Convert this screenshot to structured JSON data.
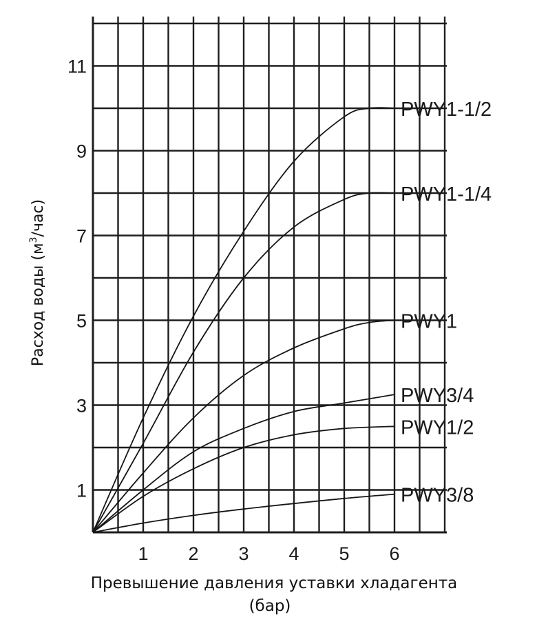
{
  "chart_data": {
    "type": "line",
    "title": "",
    "xlabel_line1": "Превышение давления уставки хладагента",
    "xlabel_line2": "(бар)",
    "ylabel_prefix": "Расход воды (м",
    "ylabel_sup": "3",
    "ylabel_suffix": "/час)",
    "xlim": [
      0,
      7
    ],
    "ylim": [
      0,
      12
    ],
    "x_ticks": [
      "1",
      "2",
      "3",
      "4",
      "5",
      "6"
    ],
    "y_ticks": [
      "1",
      "3",
      "5",
      "7",
      "9",
      "11"
    ],
    "grid": true,
    "series": [
      {
        "name": "PWY1-1/2",
        "x": [
          0,
          1,
          2,
          3,
          4,
          5,
          5.5,
          6
        ],
        "y": [
          0,
          2.7,
          5.1,
          7.1,
          8.75,
          9.8,
          10.0,
          10.0
        ]
      },
      {
        "name": "PWY1-1/4",
        "x": [
          0,
          1,
          2,
          3,
          4,
          5,
          5.5,
          6
        ],
        "y": [
          0,
          2.1,
          4.25,
          6.0,
          7.2,
          7.85,
          8.0,
          8.0
        ]
      },
      {
        "name": "PWY1",
        "x": [
          0,
          1,
          2,
          3,
          4,
          5,
          5.5,
          6
        ],
        "y": [
          0,
          1.4,
          2.7,
          3.7,
          4.35,
          4.8,
          4.95,
          5.0
        ]
      },
      {
        "name": "PWY3/4",
        "x": [
          0,
          1,
          2,
          3,
          4,
          5,
          6
        ],
        "y": [
          0,
          1.0,
          1.9,
          2.45,
          2.85,
          3.05,
          3.25
        ]
      },
      {
        "name": "PWY1/2",
        "x": [
          0,
          1,
          2,
          3,
          4,
          5,
          6
        ],
        "y": [
          0,
          0.85,
          1.5,
          2.0,
          2.3,
          2.45,
          2.5
        ]
      },
      {
        "name": "PWY3/8",
        "x": [
          0,
          1,
          2,
          3,
          4,
          5,
          6
        ],
        "y": [
          0,
          0.22,
          0.4,
          0.55,
          0.68,
          0.8,
          0.9
        ]
      }
    ]
  }
}
